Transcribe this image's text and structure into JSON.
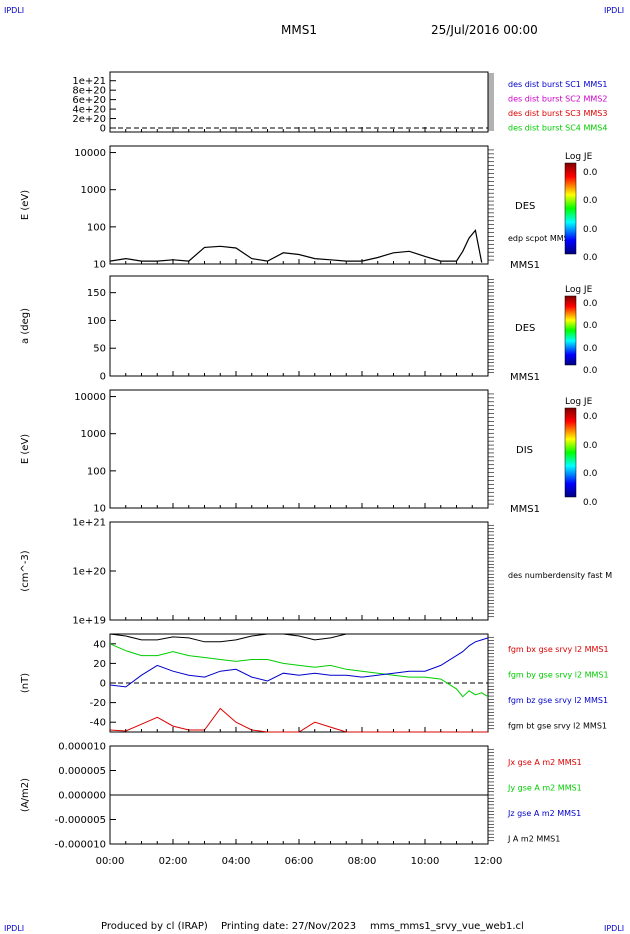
{
  "corner_label": "IPDLI",
  "header": {
    "title": "MMS1",
    "date": "25/Jul/2016 00:00"
  },
  "footer": {
    "produced_by": "Produced by cl (IRAP)",
    "printing_date": "Printing date: 27/Nov/2023",
    "file": "mms_mms1_srvy_vue_web1.cl"
  },
  "colors": {
    "black": "#000000",
    "blue": "#0000cc",
    "magenta": "#cc00cc",
    "red": "#dd0000",
    "green": "#00cc00"
  },
  "colorbar_labels": {
    "title": "Log JE",
    "ticks": [
      "0.0",
      "0.0",
      "0.0",
      "0.0"
    ]
  },
  "chart_data": [
    {
      "id": "counts",
      "type": "line",
      "xlim": [
        "00:00",
        "12:00"
      ],
      "ylim": [
        0,
        1.1e+21
      ],
      "yticks": [
        "1e+21",
        "8e+20",
        "6e+20",
        "4e+20",
        "2e+20",
        "0"
      ],
      "ylabel": "",
      "series": [
        {
          "name": "des dist burst SC1 MMS1",
          "color": "#0000cc",
          "values": []
        },
        {
          "name": "des dist burst SC2 MMS2",
          "color": "#cc00cc",
          "values": []
        },
        {
          "name": "des dist burst SC3 MMS3",
          "color": "#dd0000",
          "values": []
        },
        {
          "name": "des dist burst SC4 MMS4",
          "color": "#00cc00",
          "values": []
        }
      ],
      "reference_line": 0
    },
    {
      "id": "des-energy",
      "type": "line",
      "ylabel": "E (eV)",
      "yscale": "log",
      "ylim": [
        10,
        15000
      ],
      "yticks": [
        "10000",
        "1000",
        "100",
        "10"
      ],
      "labels": [
        "DES",
        "edp scpot MMS1",
        "MMS1"
      ],
      "series": [
        {
          "name": "edp scpot MMS1",
          "color": "#000000",
          "x": [
            0,
            0.5,
            1,
            1.5,
            2,
            2.5,
            3,
            3.5,
            4,
            4.5,
            5,
            5.5,
            6,
            6.5,
            7,
            7.5,
            8,
            8.5,
            9,
            9.5,
            10,
            10.5,
            11,
            11.2,
            11.4,
            11.6,
            11.8
          ],
          "y": [
            12,
            14,
            12,
            12,
            13,
            12,
            28,
            30,
            27,
            14,
            12,
            20,
            18,
            14,
            13,
            12,
            12,
            15,
            20,
            22,
            16,
            12,
            12,
            22,
            50,
            80,
            11
          ]
        }
      ]
    },
    {
      "id": "des-pitch",
      "type": "heatmap",
      "ylabel": "a (deg)",
      "ylim": [
        0,
        180
      ],
      "yticks": [
        "150",
        "100",
        "50",
        "0"
      ],
      "labels": [
        "DES",
        "MMS1"
      ]
    },
    {
      "id": "dis-energy",
      "type": "heatmap",
      "ylabel": "E (eV)",
      "yscale": "log",
      "ylim": [
        10,
        15000
      ],
      "yticks": [
        "10000",
        "1000",
        "100",
        "10"
      ],
      "labels": [
        "DIS",
        "MMS1"
      ]
    },
    {
      "id": "density",
      "type": "line",
      "ylabel": "(cm^-3)",
      "yscale": "log",
      "ylim": [
        1e+19,
        1e+21
      ],
      "yticks": [
        "1e+21",
        "1e+20",
        "1e+19"
      ],
      "labels": [
        "des numberdensity fast M"
      ]
    },
    {
      "id": "fgm",
      "type": "line",
      "ylabel": "(nT)",
      "ylim": [
        -50,
        50
      ],
      "yticks": [
        "40",
        "20",
        "0",
        "-20",
        "-40"
      ],
      "x": [
        0,
        0.5,
        1,
        1.5,
        2,
        2.5,
        3,
        3.5,
        4,
        4.5,
        5,
        5.5,
        6,
        6.5,
        7,
        7.5,
        8,
        8.5,
        9,
        9.5,
        10,
        10.5,
        11,
        11.2,
        11.4,
        11.6,
        11.8,
        12
      ],
      "series": [
        {
          "name": "fgm bx gse srvy l2 MMS1",
          "color": "#dd0000",
          "values": [
            -48,
            -49,
            -42,
            -35,
            -44,
            -48,
            -48,
            -26,
            -40,
            -48,
            -50,
            -50,
            -50,
            -40,
            -45,
            -50,
            -50,
            -50,
            -50,
            -50,
            -50,
            -50,
            -50,
            -50,
            -50,
            -50,
            -50,
            -50
          ]
        },
        {
          "name": "fgm by gse srvy l2 MMS1",
          "color": "#00cc00",
          "values": [
            40,
            33,
            28,
            28,
            32,
            28,
            26,
            24,
            22,
            24,
            24,
            20,
            18,
            16,
            18,
            14,
            12,
            10,
            8,
            6,
            6,
            4,
            -6,
            -14,
            -8,
            -12,
            -10,
            -14
          ]
        },
        {
          "name": "fgm bz gse srvy l2 MMS1",
          "color": "#0000cc",
          "values": [
            -2,
            -4,
            8,
            18,
            12,
            8,
            6,
            12,
            14,
            6,
            2,
            10,
            8,
            10,
            8,
            8,
            6,
            8,
            10,
            12,
            12,
            18,
            28,
            32,
            38,
            42,
            44,
            46
          ]
        },
        {
          "name": "fgm bt gse srvy l2 MMS1",
          "color": "#000000",
          "values": [
            50,
            48,
            44,
            44,
            47,
            46,
            42,
            42,
            44,
            48,
            50,
            50,
            48,
            44,
            46,
            50,
            50,
            50,
            50,
            50,
            50,
            50,
            50,
            50,
            50,
            50,
            50,
            50
          ]
        }
      ],
      "reference_line": 0
    },
    {
      "id": "current",
      "type": "line",
      "ylabel": "(A/m2)",
      "ylim": [
        -1e-05,
        1e-05
      ],
      "yticks": [
        "0.000010",
        "0.000005",
        "0.000000",
        "-0.000005",
        "-0.000010"
      ],
      "xticks": [
        "00:00",
        "02:00",
        "04:00",
        "06:00",
        "08:00",
        "10:00",
        "12:00"
      ],
      "series": [
        {
          "name": "Jx gse A m2 MMS1",
          "color": "#dd0000",
          "values": []
        },
        {
          "name": "Jy gse A m2 MMS1",
          "color": "#00cc00",
          "values": []
        },
        {
          "name": "Jz gse A m2 MMS1",
          "color": "#0000cc",
          "values": []
        },
        {
          "name": "J A m2 MMS1",
          "color": "#000000",
          "values": [
            0,
            0,
            0,
            0,
            0,
            0,
            0
          ]
        }
      ]
    }
  ]
}
